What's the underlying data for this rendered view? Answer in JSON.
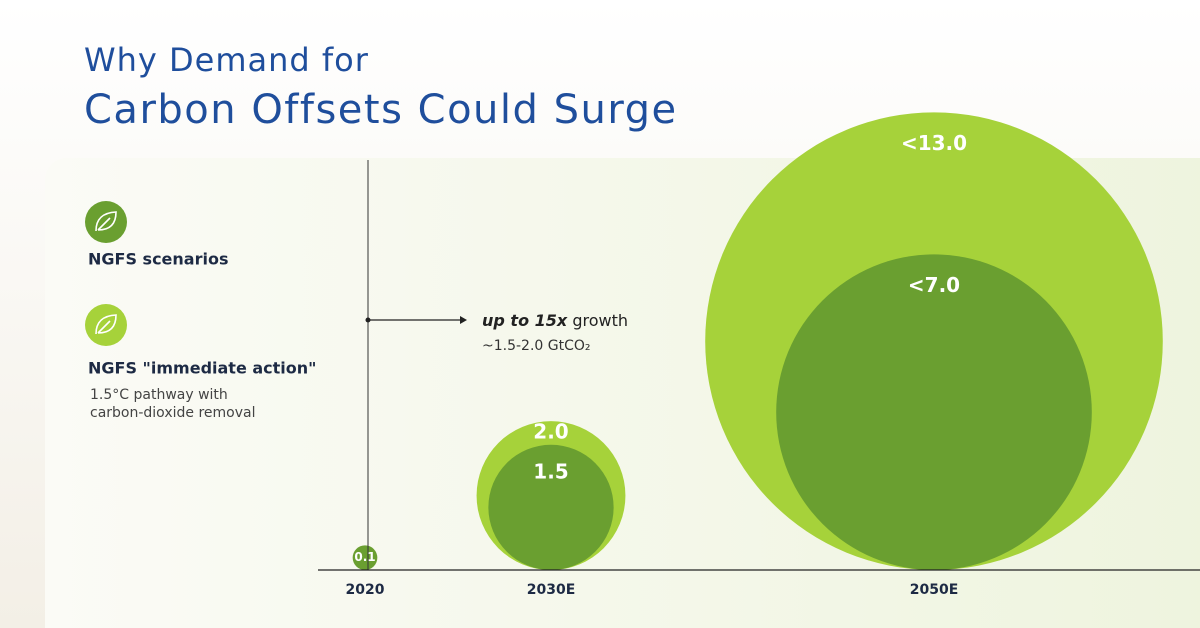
{
  "chart_data": {
    "type": "bubble",
    "title": [
      "Why Demand for",
      "Carbon Offsets Could Surge"
    ],
    "categories": [
      "2020",
      "2030E",
      "2050E"
    ],
    "series": [
      {
        "name": "NGFS scenarios",
        "color": "#6a9f30",
        "values": [
          0.1,
          1.5,
          7.0
        ],
        "value_labels": [
          "0.1",
          "1.5",
          "<7.0"
        ]
      },
      {
        "name": "NGFS \"immediate action\"",
        "color": "#a6d23a",
        "values": [
          null,
          2.0,
          13.0
        ],
        "value_labels": [
          null,
          "2.0",
          "<13.0"
        ]
      }
    ],
    "legend_note": [
      "1.5°C pathway with",
      "carbon-dioxide removal"
    ],
    "annotation": {
      "emphasis": "up to 15x",
      "text": "growth",
      "detail": "~1.5-2.0 GtCO₂"
    }
  }
}
